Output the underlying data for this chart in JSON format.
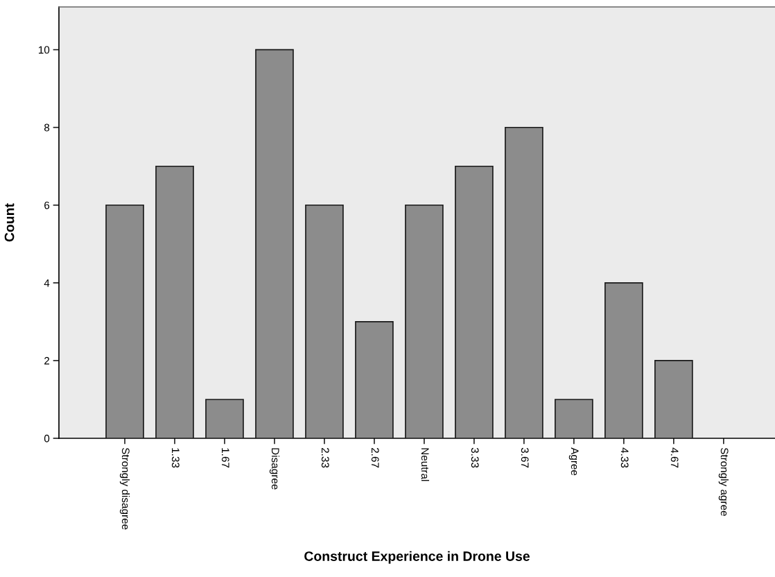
{
  "chart_data": {
    "type": "bar",
    "xlabel": "Construct Experience in Drone Use",
    "ylabel": "Count",
    "categories": [
      "Strongly disagree",
      "1.33",
      "1.67",
      "Disagree",
      "2.33",
      "2.67",
      "Neutral",
      "3.33",
      "3.67",
      "Agree",
      "4.33",
      "4.67",
      "Strongly agree"
    ],
    "values": [
      6,
      7,
      1,
      10,
      6,
      3,
      6,
      7,
      8,
      1,
      4,
      2,
      0
    ],
    "color": "#8c8c8c",
    "ylim": [
      0,
      11.1
    ],
    "yticks": [
      0,
      2,
      4,
      6,
      8,
      10
    ],
    "grid": false
  }
}
